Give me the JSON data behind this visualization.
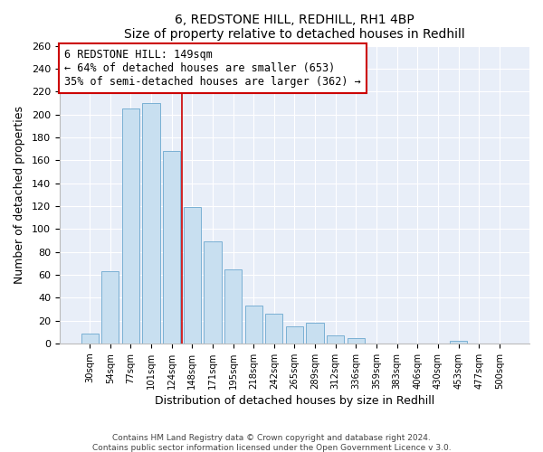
{
  "title": "6, REDSTONE HILL, REDHILL, RH1 4BP",
  "subtitle": "Size of property relative to detached houses in Redhill",
  "xlabel": "Distribution of detached houses by size in Redhill",
  "ylabel": "Number of detached properties",
  "footer_line1": "Contains HM Land Registry data © Crown copyright and database right 2024.",
  "footer_line2": "Contains public sector information licensed under the Open Government Licence v 3.0.",
  "bar_labels": [
    "30sqm",
    "54sqm",
    "77sqm",
    "101sqm",
    "124sqm",
    "148sqm",
    "171sqm",
    "195sqm",
    "218sqm",
    "242sqm",
    "265sqm",
    "289sqm",
    "312sqm",
    "336sqm",
    "359sqm",
    "383sqm",
    "406sqm",
    "430sqm",
    "453sqm",
    "477sqm",
    "500sqm"
  ],
  "bar_values": [
    9,
    63,
    205,
    210,
    168,
    119,
    89,
    65,
    33,
    26,
    15,
    18,
    7,
    5,
    0,
    0,
    0,
    0,
    2,
    0,
    0
  ],
  "bar_color": "#c8dff0",
  "bar_edge_color": "#7ab0d4",
  "vline_color": "#cc0000",
  "vline_x_index": 4.5,
  "annotation_title": "6 REDSTONE HILL: 149sqm",
  "annotation_line2": "← 64% of detached houses are smaller (653)",
  "annotation_line3": "35% of semi-detached houses are larger (362) →",
  "annotation_box_edgecolor": "#cc0000",
  "annotation_box_facecolor": "white",
  "ylim": [
    0,
    260
  ],
  "yticks": [
    0,
    20,
    40,
    60,
    80,
    100,
    120,
    140,
    160,
    180,
    200,
    220,
    240,
    260
  ],
  "bg_color": "#e8eef8",
  "grid_color": "white"
}
